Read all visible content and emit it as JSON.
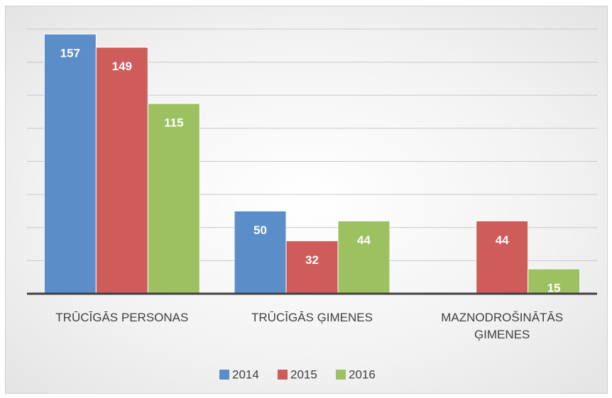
{
  "chart_data": {
    "type": "bar",
    "categories": [
      "TRŪCĪGĀS PERSONAS",
      "TRŪCĪGĀS ĢIMENES",
      "MAZNODROŠINĀTĀS ĢIMENES"
    ],
    "series": [
      {
        "name": "2014",
        "color": "#5b8dc9",
        "values": [
          157,
          50,
          null
        ]
      },
      {
        "name": "2015",
        "color": "#cd5c5a",
        "values": [
          149,
          32,
          44
        ]
      },
      {
        "name": "2016",
        "color": "#9dc161",
        "values": [
          115,
          44,
          15
        ]
      }
    ],
    "ylim": [
      0,
      160
    ],
    "yticks": [
      0,
      20,
      40,
      60,
      80,
      100,
      120,
      140,
      160
    ],
    "grid": true,
    "legend": "bottom"
  }
}
